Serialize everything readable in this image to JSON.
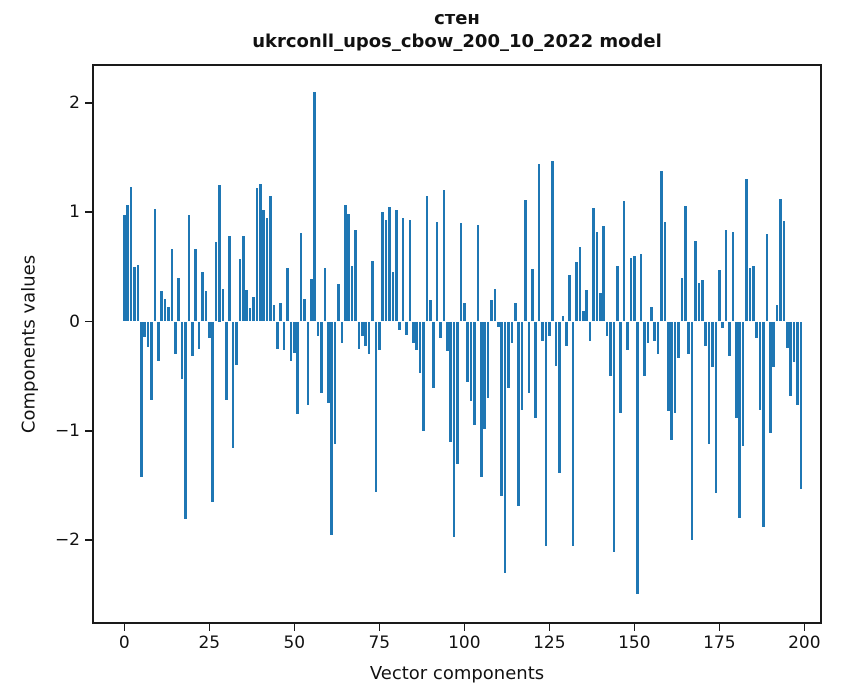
{
  "chart_data": {
    "type": "bar",
    "title": "стен",
    "subtitle": "ukrconll_upos_cbow_200_10_2022 model",
    "xlabel": "Vector components",
    "ylabel": "Components values",
    "x_ticks": [
      0,
      25,
      50,
      75,
      100,
      125,
      150,
      175,
      200
    ],
    "y_ticks": [
      2,
      1,
      0,
      -1,
      -2
    ],
    "xlim": [
      -11,
      210
    ],
    "ylim": [
      -2.76,
      2.35
    ],
    "grid": false,
    "legend": null,
    "bar_color": "#1f77b4",
    "x_start": 0,
    "values": [
      0.97,
      1.07,
      1.23,
      0.5,
      0.52,
      -1.42,
      -0.14,
      -0.23,
      -0.72,
      1.03,
      -0.36,
      0.28,
      0.21,
      0.13,
      0.66,
      -0.3,
      0.4,
      -0.53,
      -1.81,
      0.97,
      -0.32,
      0.66,
      -0.25,
      0.45,
      0.28,
      -0.15,
      -1.65,
      0.73,
      1.25,
      0.3,
      -0.72,
      0.78,
      -1.16,
      -0.4,
      0.57,
      0.78,
      0.29,
      0.12,
      0.22,
      1.22,
      1.26,
      1.02,
      0.95,
      1.15,
      0.15,
      -0.25,
      0.17,
      -0.26,
      0.49,
      -0.36,
      -0.29,
      -0.85,
      0.81,
      0.21,
      -0.76,
      0.39,
      2.1,
      -0.13,
      -0.65,
      0.49,
      -0.75,
      -1.95,
      -1.12,
      0.34,
      -0.2,
      1.07,
      0.98,
      0.51,
      0.84,
      -0.25,
      -0.13,
      -0.22,
      -0.3,
      0.55,
      -1.56,
      -0.26,
      1.0,
      0.93,
      1.05,
      0.45,
      1.02,
      -0.08,
      0.95,
      -0.12,
      0.93,
      -0.2,
      -0.26,
      -0.47,
      -1.0,
      1.15,
      0.2,
      -0.61,
      0.91,
      -0.15,
      1.2,
      -0.27,
      -1.1,
      -1.97,
      -1.3,
      0.9,
      0.17,
      -0.55,
      -0.73,
      -0.95,
      0.88,
      -1.42,
      -0.98,
      -0.7,
      0.2,
      0.3,
      -0.05,
      -1.6,
      -2.3,
      -0.61,
      -0.2,
      0.17,
      -1.69,
      -0.81,
      1.11,
      -0.65,
      0.48,
      -0.88,
      1.44,
      -0.18,
      -2.05,
      -0.13,
      1.47,
      -0.41,
      -1.39,
      0.05,
      -0.22,
      0.43,
      -2.05,
      0.54,
      0.68,
      0.1,
      0.29,
      -0.18,
      1.04,
      0.82,
      0.26,
      0.87,
      -0.13,
      -0.5,
      -2.11,
      0.51,
      -0.84,
      1.1,
      -0.26,
      0.58,
      0.6,
      -2.49,
      0.62,
      -0.5,
      -0.2,
      0.13,
      -0.18,
      -0.3,
      1.38,
      0.91,
      -0.82,
      -1.08,
      -0.84,
      -0.33,
      0.4,
      1.06,
      -0.3,
      -2.0,
      0.74,
      0.35,
      0.38,
      -0.22,
      -1.12,
      -0.42,
      -1.57,
      0.47,
      -0.06,
      0.84,
      -0.32,
      0.82,
      -0.88,
      -1.8,
      -1.14,
      1.3,
      0.49,
      0.51,
      -0.15,
      -0.81,
      -1.88,
      0.8,
      -1.02,
      -0.42,
      0.15,
      1.12,
      0.92,
      -0.24,
      -0.68,
      -0.37,
      -0.76,
      -1.53
    ]
  }
}
